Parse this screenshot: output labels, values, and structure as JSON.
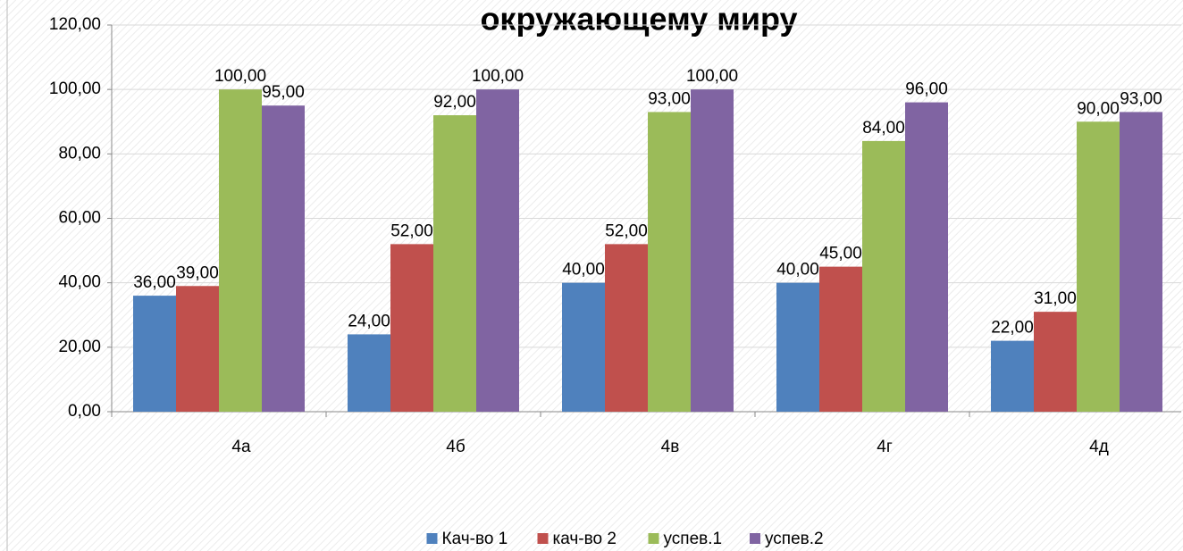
{
  "chart_data": {
    "type": "bar",
    "title": "окружающему миру",
    "categories": [
      "4а",
      "4б",
      "4в",
      "4г",
      "4д"
    ],
    "series": [
      {
        "name": "Кач-во 1",
        "color": "#4f81bd",
        "values": [
          36,
          24,
          40,
          40,
          22
        ],
        "value_labels": [
          "36,00",
          "24,00",
          "40,00",
          "40,00",
          "22,00"
        ]
      },
      {
        "name": "кач-во 2",
        "color": "#c0504d",
        "values": [
          39,
          52,
          52,
          45,
          31
        ],
        "value_labels": [
          "39,00",
          "52,00",
          "52,00",
          "45,00",
          "31,00"
        ]
      },
      {
        "name": "успев.1",
        "color": "#9bbb59",
        "values": [
          100,
          92,
          93,
          84,
          90
        ],
        "value_labels": [
          "100,00",
          "92,00",
          "93,00",
          "84,00",
          "90,00"
        ]
      },
      {
        "name": "успев.2",
        "color": "#8064a2",
        "values": [
          95,
          100,
          100,
          96,
          93
        ],
        "value_labels": [
          "95,00",
          "100,00",
          "100,00",
          "96,00",
          "93,00"
        ]
      }
    ],
    "ylim": [
      0,
      120
    ],
    "yticks": [
      {
        "value": 0,
        "label": "0,00"
      },
      {
        "value": 20,
        "label": "20,00"
      },
      {
        "value": 40,
        "label": "40,00"
      },
      {
        "value": 60,
        "label": "60,00"
      },
      {
        "value": 80,
        "label": "80,00"
      },
      {
        "value": 100,
        "label": "100,00"
      },
      {
        "value": 120,
        "label": "120,00"
      }
    ],
    "grid": true,
    "legend": "bottom"
  }
}
